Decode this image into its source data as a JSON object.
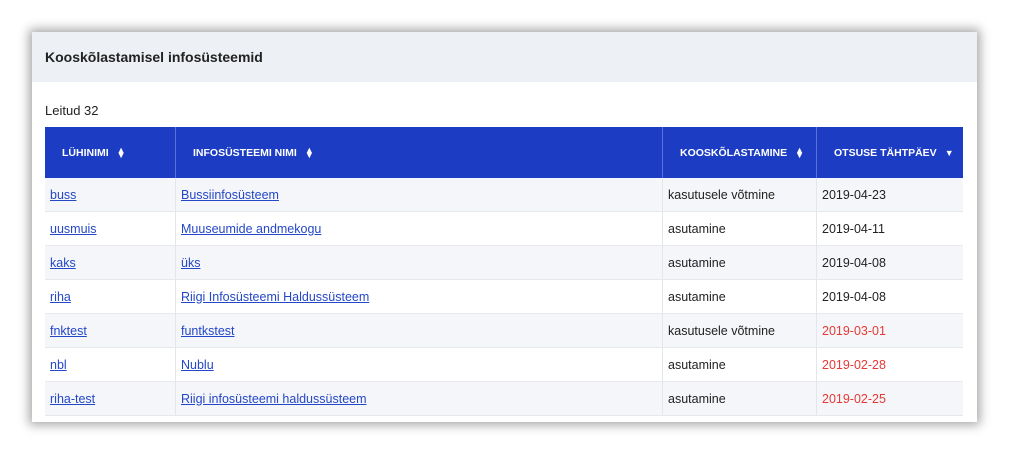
{
  "title": "Kooskõlastamisel infosüsteemid",
  "count": "Leitud 32",
  "columns": [
    {
      "label": "LÜHINIMI",
      "sort": "both"
    },
    {
      "label": "INFOSÜSTEEMI NIMI",
      "sort": "both"
    },
    {
      "label": "KOOSKÕLASTAMINE",
      "sort": "both"
    },
    {
      "label": "OTSUSE TÄHTPÄEV",
      "sort": "desc"
    }
  ],
  "overdue_color": "#e53935",
  "rows": [
    {
      "short": "buss",
      "name": "Bussiinfosüsteem",
      "type": "kasutusele võtmine",
      "date": "2019-04-23",
      "overdue": false
    },
    {
      "short": "uusmuis",
      "name": "Muuseumide andmekogu",
      "type": "asutamine",
      "date": "2019-04-11",
      "overdue": false
    },
    {
      "short": "kaks",
      "name": "üks",
      "type": "asutamine",
      "date": "2019-04-08",
      "overdue": false
    },
    {
      "short": "riha",
      "name": "Riigi Infosüsteemi Haldussüsteem",
      "type": "asutamine",
      "date": "2019-04-08",
      "overdue": false
    },
    {
      "short": "fnktest",
      "name": "funtkstest",
      "type": "kasutusele võtmine",
      "date": "2019-03-01",
      "overdue": true
    },
    {
      "short": "nbl",
      "name": "Nublu",
      "type": "asutamine",
      "date": "2019-02-28",
      "overdue": true
    },
    {
      "short": "riha-test",
      "name": "Riigi infosüsteemi haldussüsteem",
      "type": "asutamine",
      "date": "2019-02-25",
      "overdue": true
    }
  ]
}
